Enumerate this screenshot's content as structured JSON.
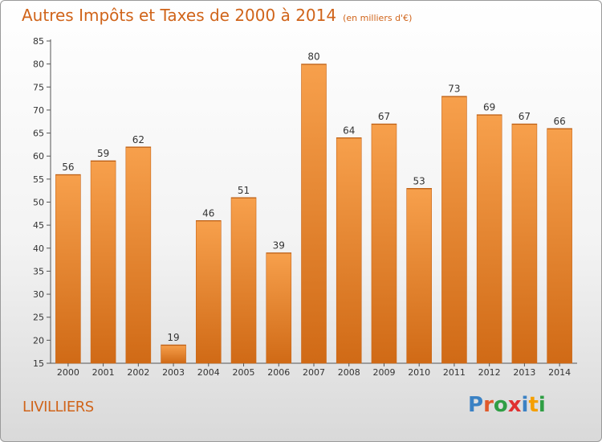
{
  "title": "Autres Impôts et Taxes de 2000 à 2014",
  "subtitle": "(en milliers d'€)",
  "commune": "LIVILLIERS",
  "logo": {
    "letters": [
      "P",
      "r",
      "o",
      "x",
      "i",
      "t",
      "i"
    ],
    "colors": [
      "#3b82c4",
      "#e05a2b",
      "#2f9e44",
      "#e03131",
      "#3b82c4",
      "#f59f00",
      "#2f9e44"
    ]
  },
  "colors": {
    "bar": "#f0923a",
    "bar_dark": "#d9731f",
    "title": "#d0641a"
  },
  "chart_data": {
    "type": "bar",
    "title": "Autres Impôts et Taxes de 2000 à 2014",
    "xlabel": "",
    "ylabel": "",
    "ylim": [
      15,
      85
    ],
    "yticks": [
      15,
      20,
      25,
      30,
      35,
      40,
      45,
      50,
      55,
      60,
      65,
      70,
      75,
      80,
      85
    ],
    "categories": [
      "2000",
      "2001",
      "2002",
      "2003",
      "2004",
      "2005",
      "2006",
      "2007",
      "2008",
      "2009",
      "2010",
      "2011",
      "2012",
      "2013",
      "2014"
    ],
    "values": [
      56,
      59,
      62,
      19,
      46,
      51,
      39,
      80,
      64,
      67,
      53,
      73,
      69,
      67,
      66
    ],
    "grid": false,
    "legend": "none"
  }
}
